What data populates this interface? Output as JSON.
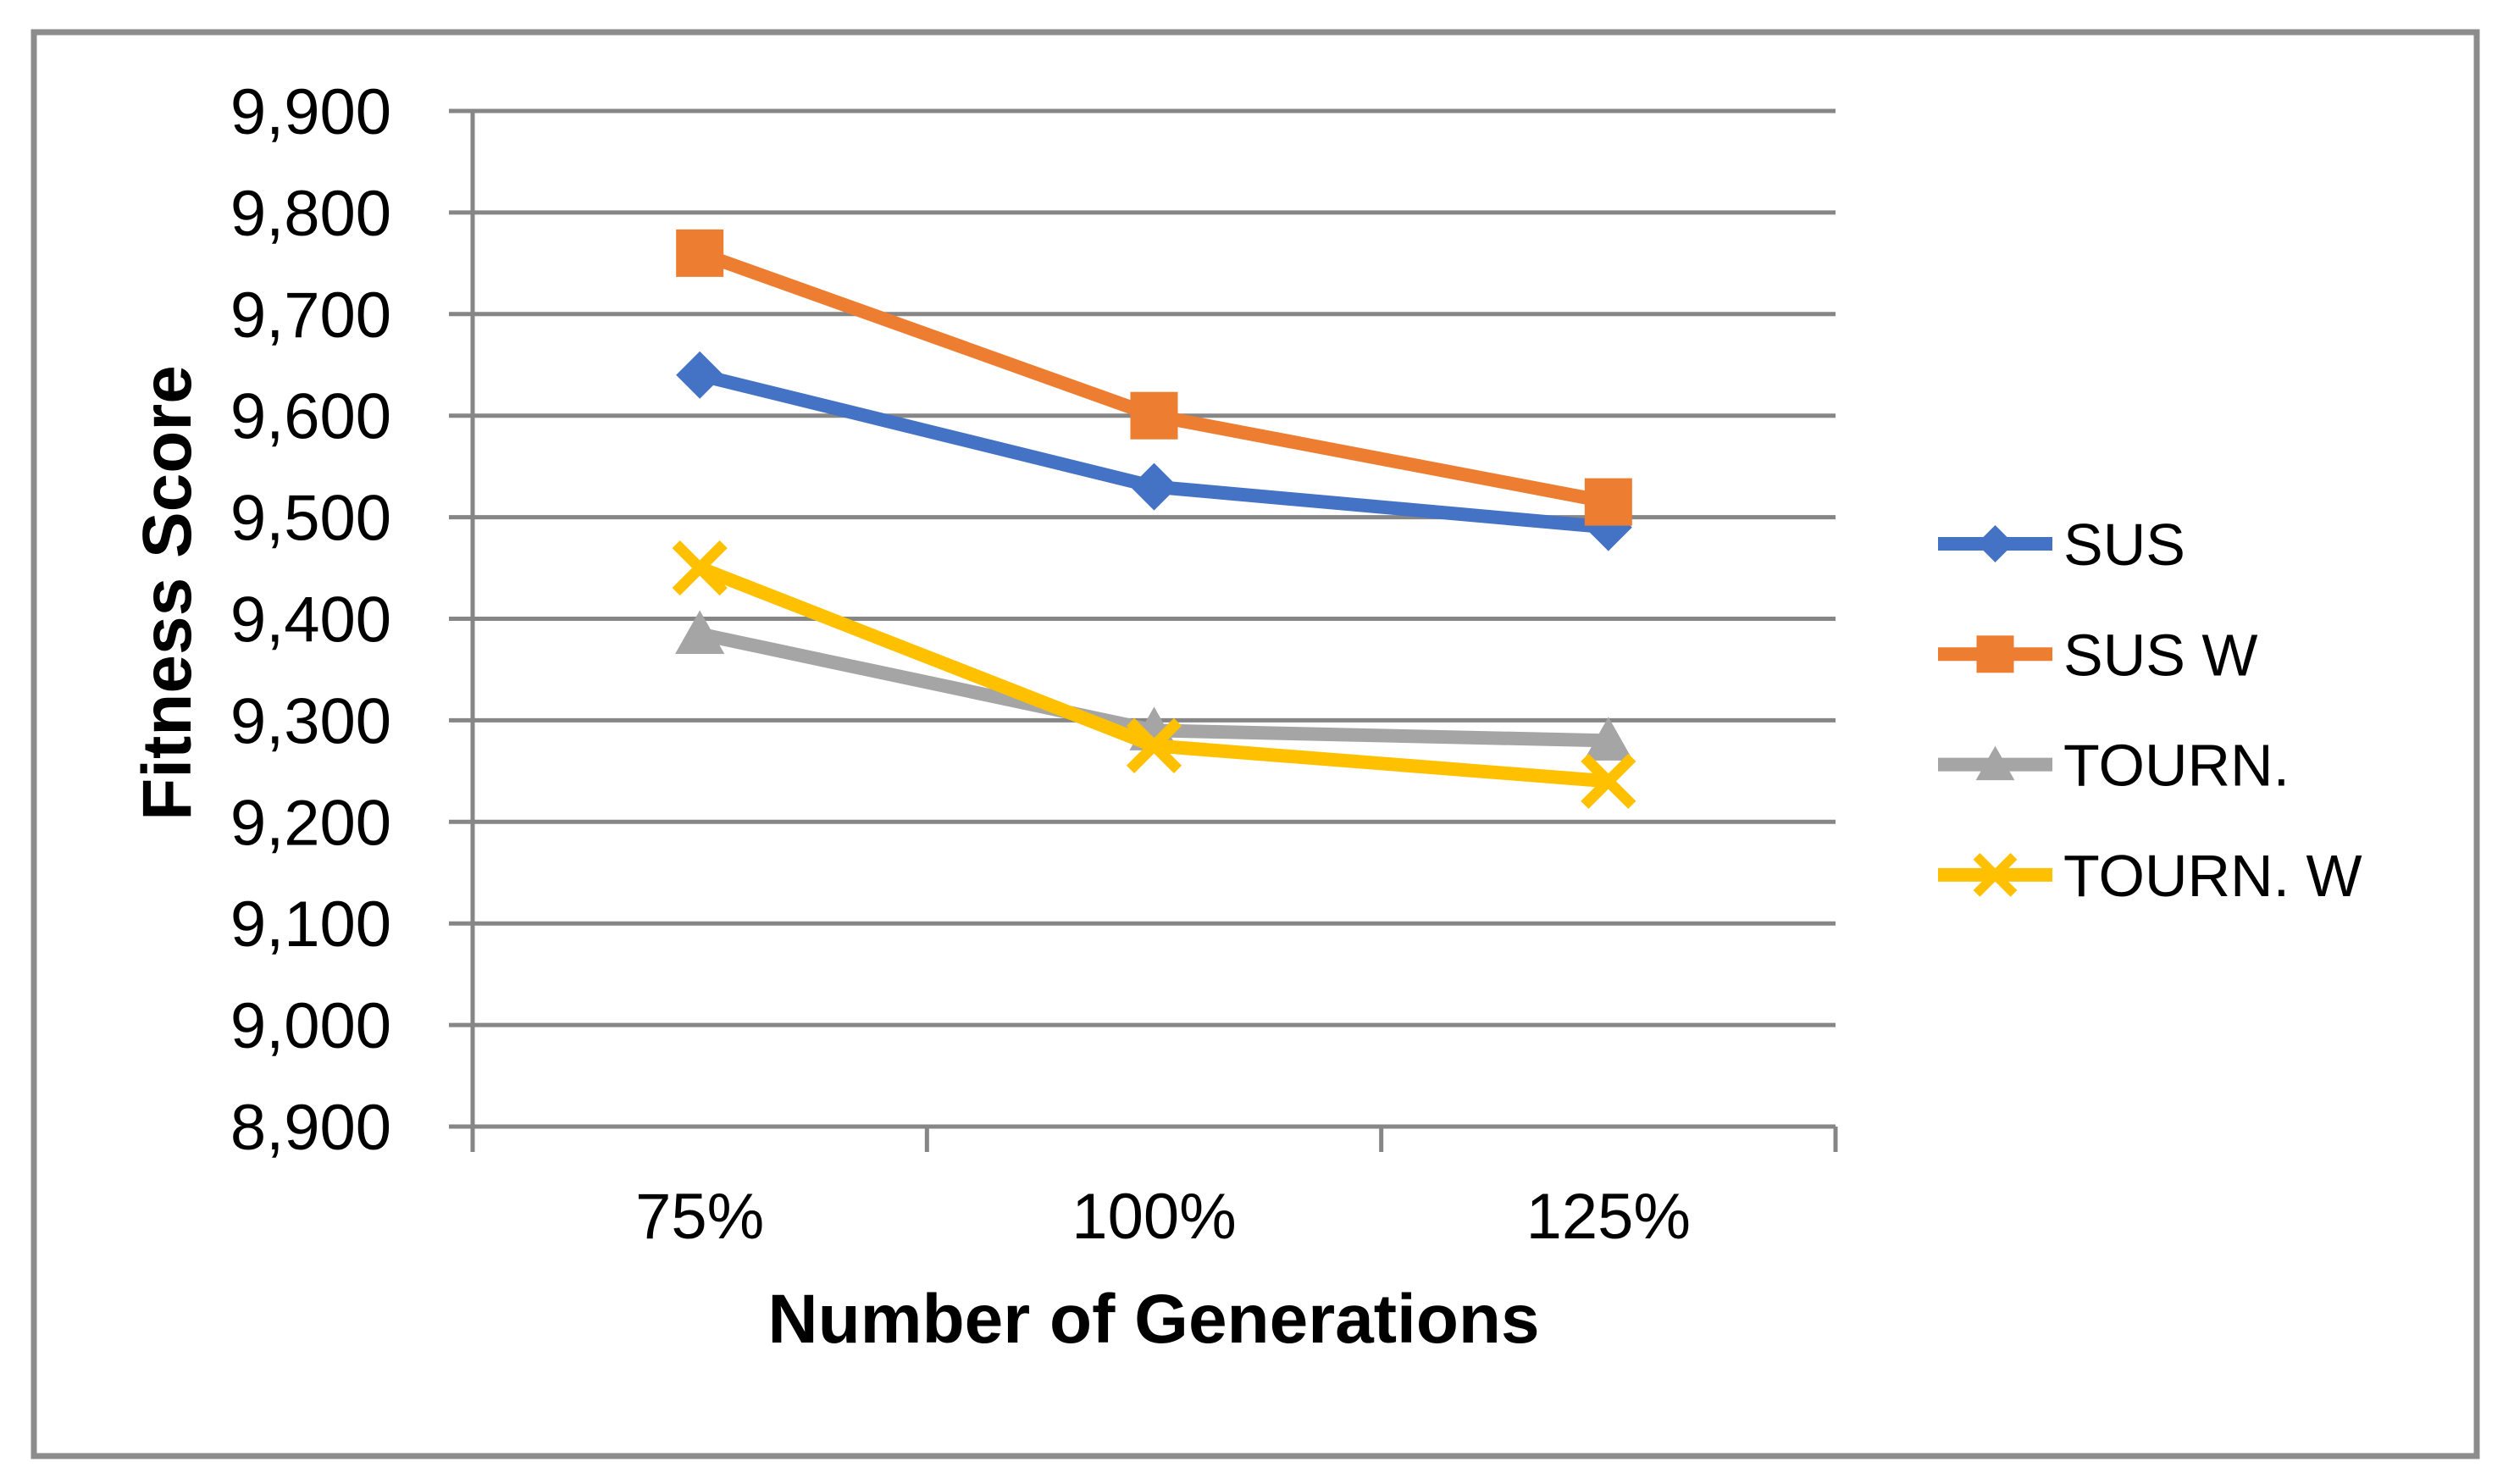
{
  "chart_data": {
    "type": "line",
    "title": "",
    "xlabel": "Number of Generations",
    "ylabel": "Fitness Score",
    "categories": [
      "75%",
      "100%",
      "125%"
    ],
    "series": [
      {
        "name": "SUS",
        "marker": "diamond",
        "color": "#4472C4",
        "values": [
          9640,
          9530,
          9490
        ]
      },
      {
        "name": "SUS W",
        "marker": "square",
        "color": "#ED7D31",
        "values": [
          9760,
          9600,
          9515
        ]
      },
      {
        "name": "TOURN.",
        "marker": "triangle",
        "color": "#A5A5A5",
        "values": [
          9385,
          9290,
          9280
        ]
      },
      {
        "name": "TOURN. W",
        "marker": "x",
        "color": "#FFC000",
        "values": [
          9450,
          9275,
          9240
        ]
      }
    ],
    "y_axis": {
      "min": 8900,
      "max": 9900,
      "step": 100,
      "tick_labels": [
        "8,900",
        "9,000",
        "9,100",
        "9,200",
        "9,300",
        "9,400",
        "9,500",
        "9,600",
        "9,700",
        "9,800",
        "9,900"
      ]
    },
    "x_axis": {
      "tick_labels": [
        "75%",
        "100%",
        "125%"
      ]
    },
    "legend_position": "right",
    "grid": true,
    "colors": {
      "background": "#FFFFFF",
      "border": "#8C8C8C",
      "gridline": "#868686",
      "axis": "#868686",
      "text": "#000000"
    }
  }
}
